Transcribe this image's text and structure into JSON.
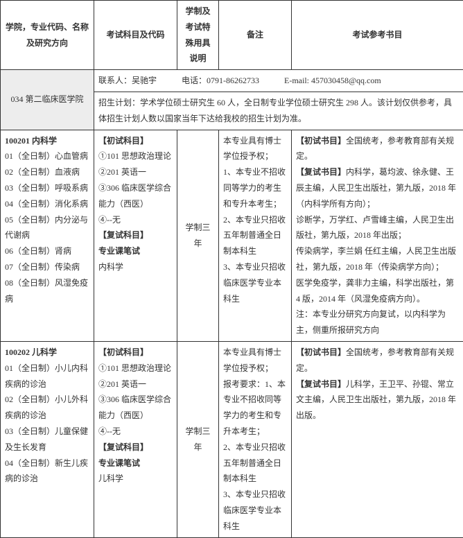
{
  "headers": {
    "col1": "学院，专业代码、名称及研究方向",
    "col2": "考试科目及代码",
    "col3": "学制及考试特殊用具说明",
    "col4": "备注",
    "col5": "考试参考书目"
  },
  "school": {
    "code_name": "034 第二临床医学院",
    "contact_label": "联系人：吴驰宇",
    "phone_label": "电话：0791-86262733",
    "email_label": "E-mail: 457030458@qq.com",
    "plan": "招生计划：学术学位硕士研究生 60 人，全日制专业学位硕士研究生 298 人。该计划仅供参考，具体招生计划人数以国家当年下达给我校的招生计划为准。"
  },
  "row1": {
    "major_header": "100201 内科学",
    "directions": [
      "01（全日制）心血管病",
      "02（全日制）血液病",
      "03（全日制）呼吸系病",
      "04（全日制）消化系病",
      "05（全日制）内分泌与代谢病",
      "06（全日制）肾病",
      "07（全日制）传染病",
      "08（全日制）风湿免疫病"
    ],
    "exam_prelim_label": "【初试科目】",
    "exam_prelim_items": [
      "①101 思想政治理论",
      "②201 英语一",
      "③306 临床医学综合能力（西医）",
      "④--无"
    ],
    "exam_retest_label": "【复试科目】",
    "exam_retest_items": [
      "专业课笔试",
      "内科学"
    ],
    "duration": "学制三年",
    "remarks": "本专业具有博士学位授予权；\n1、本专业不招收同等学力的考生和专升本考生；\n2、本专业只招收五年制普通全日制本科生\n3、本专业只招收临床医学专业本科生",
    "books_prelim_label": "【初试书目】",
    "books_prelim": "全国统考，参考教育部有关规定。",
    "books_retest_label": "【复试书目】",
    "books_retest": "内科学，葛均波、徐永健、王辰主编，人民卫生出版社，第九版，2018 年（内科学所有方向）；\n诊断学，万学红、卢雪峰主编，人民卫生出版社，第九版，2018 年出版；\n传染病学，李兰娟 任红主编，人民卫生出版社，第九版，2018 年（传染病学方向）；\n医学免疫学，龚非力主编，科学出版社，第 4 版，2014 年（风湿免疫病方向）。\n注：本专业分研究方向复试，以内科学为主，侧重所报研究方向"
  },
  "row2": {
    "major_header": "100202 儿科学",
    "directions": [
      "01（全日制）小儿内科疾病的诊治",
      "02（全日制）小儿外科疾病的诊治",
      "03（全日制）儿童保健及生长发育",
      "04（全日制）新生儿疾病的诊治"
    ],
    "exam_prelim_label": "【初试科目】",
    "exam_prelim_items": [
      "①101 思想政治理论",
      "②201 英语一",
      "③306 临床医学综合能力（西医）",
      "④--无"
    ],
    "exam_retest_label": "【复试科目】",
    "exam_retest_items": [
      "专业课笔试",
      "儿科学"
    ],
    "duration": "学制三年",
    "remarks": "本专业具有博士学位授予权；\n报考要求：1、本专业不招收同等学力的考生和专升本考生；\n2、本专业只招收五年制普通全日制本科生\n3、本专业只招收临床医学专业本科生",
    "books_prelim_label": "【初试书目】",
    "books_prelim": "全国统考，参考教育部有关规定。",
    "books_retest_label": "【复试书目】",
    "books_retest": "儿科学，王卫平、孙锟、常立文主编，人民卫生出版社，第九版，2018 年出版。"
  }
}
